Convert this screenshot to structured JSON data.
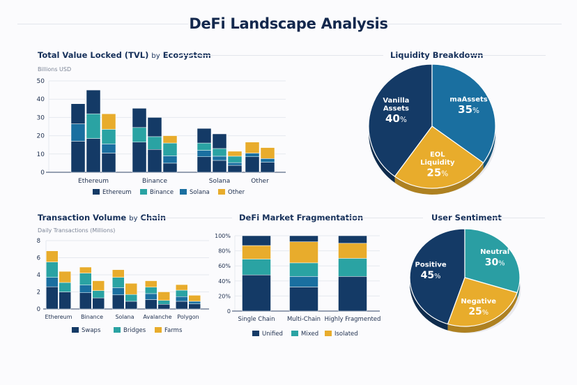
{
  "title": "DeFi Landscape Analysis",
  "colors": {
    "navy": "#143a66",
    "blue": "#1a6fa0",
    "teal": "#2aa3a3",
    "yellow": "#e8ac2c",
    "grid": "#e6e9ef",
    "axis": "#5a6a86",
    "text": "#1e2f4e"
  },
  "sections": {
    "tvl": {
      "title_a": "Total Value Locked (TVL)",
      "title_by": "by",
      "title_b": "Ecosystem"
    },
    "liquidity": {
      "title": "Liquidity Breakdown"
    },
    "txvol": {
      "title_a": "Transaction Volume",
      "title_by": "by",
      "title_b": "Chain"
    },
    "frag": {
      "title": "DeFi Market Fragmentation"
    },
    "sentiment": {
      "title": "User Sentiment"
    }
  },
  "chart_data": [
    {
      "id": "tvl",
      "type": "bar",
      "stacked": true,
      "title": "Total Value Locked (TVL) by Ecosystem",
      "ylabel": "Billions USD",
      "ylim": [
        0,
        50
      ],
      "yticks": [
        0,
        10,
        20,
        30,
        40,
        50
      ],
      "grid": true,
      "legend": {
        "position": "bottom",
        "entries": [
          {
            "label": "Ethereum",
            "color": "#143a66"
          },
          {
            "label": "Binance",
            "color": "#2aa3a3"
          },
          {
            "label": "Solana",
            "color": "#1a6fa0"
          },
          {
            "label": "Other",
            "color": "#e8ac2c"
          }
        ]
      },
      "groups": [
        {
          "category": "Ethereum",
          "bars": [
            [
              {
                "c": "navy",
                "v": 17
              },
              {
                "c": "blue",
                "v": 9.5
              },
              {
                "c": "navy",
                "v": 11
              }
            ],
            [
              {
                "c": "navy",
                "v": 18.5
              },
              {
                "c": "teal",
                "v": 13.5
              },
              {
                "c": "navy",
                "v": 13
              }
            ],
            [
              {
                "c": "navy",
                "v": 10.5
              },
              {
                "c": "blue",
                "v": 5
              },
              {
                "c": "teal",
                "v": 8
              },
              {
                "c": "yellow",
                "v": 8.5
              }
            ]
          ]
        },
        {
          "category": "Binance",
          "bars": [
            [
              {
                "c": "navy",
                "v": 16.5
              },
              {
                "c": "teal",
                "v": 8
              },
              {
                "c": "navy",
                "v": 10.5
              }
            ],
            [
              {
                "c": "navy",
                "v": 12.5
              },
              {
                "c": "teal",
                "v": 7
              },
              {
                "c": "navy",
                "v": 10.5
              }
            ],
            [
              {
                "c": "navy",
                "v": 5
              },
              {
                "c": "blue",
                "v": 4
              },
              {
                "c": "teal",
                "v": 7
              },
              {
                "c": "yellow",
                "v": 4
              }
            ]
          ]
        },
        {
          "category": "Solana",
          "bars": [
            [
              {
                "c": "navy",
                "v": 8.5
              },
              {
                "c": "blue",
                "v": 3.5
              },
              {
                "c": "teal",
                "v": 4
              },
              {
                "c": "navy",
                "v": 8
              }
            ],
            [
              {
                "c": "navy",
                "v": 6.5
              },
              {
                "c": "blue",
                "v": 2.3
              },
              {
                "c": "teal",
                "v": 4.2
              },
              {
                "c": "navy",
                "v": 8
              }
            ],
            [
              {
                "c": "navy",
                "v": 3.8
              },
              {
                "c": "blue",
                "v": 1.5
              },
              {
                "c": "teal",
                "v": 3.5
              },
              {
                "c": "yellow",
                "v": 2.7
              }
            ]
          ]
        },
        {
          "category": "Other",
          "bars": [
            [
              {
                "c": "navy",
                "v": 8.5
              },
              {
                "c": "blue",
                "v": 2
              },
              {
                "c": "yellow",
                "v": 6
              }
            ],
            [
              {
                "c": "navy",
                "v": 5.5
              },
              {
                "c": "blue",
                "v": 2
              },
              {
                "c": "yellow",
                "v": 6
              }
            ]
          ]
        }
      ]
    },
    {
      "id": "liquidity",
      "type": "pie",
      "title": "Liquidity Breakdown",
      "slices": [
        {
          "label": "Vanilla Assets",
          "value": 40,
          "display": "40",
          "color": "#143a66"
        },
        {
          "label": "maAssets",
          "value": 35,
          "display": "35",
          "color": "#1a6fa0"
        },
        {
          "label": "EOL Liquidity",
          "value": 25,
          "display": "25",
          "color": "#e8ac2c"
        }
      ]
    },
    {
      "id": "txvol",
      "type": "bar",
      "stacked": true,
      "title": "Transaction Volume by Chain",
      "ylabel": "Daily Transactions (Millions)",
      "ylim": [
        0,
        8
      ],
      "yticks": [
        0,
        2,
        4,
        6,
        8
      ],
      "grid": true,
      "legend": {
        "position": "bottom",
        "entries": [
          {
            "label": "Swaps",
            "color": "#143a66"
          },
          {
            "label": "Bridges",
            "color": "#2aa3a3"
          },
          {
            "label": "Farms",
            "color": "#e8ac2c"
          }
        ]
      },
      "groups": [
        {
          "category": "Ethereum",
          "bars": [
            [
              {
                "c": "navy",
                "v": 2.6
              },
              {
                "c": "blue",
                "v": 1.1
              },
              {
                "c": "teal",
                "v": 1.8
              },
              {
                "c": "yellow",
                "v": 1.3
              }
            ],
            [
              {
                "c": "navy",
                "v": 2.0
              },
              {
                "c": "teal",
                "v": 1.1
              },
              {
                "c": "yellow",
                "v": 1.3
              }
            ]
          ]
        },
        {
          "category": "Binance",
          "bars": [
            [
              {
                "c": "navy",
                "v": 1.9
              },
              {
                "c": "blue",
                "v": 0.9
              },
              {
                "c": "teal",
                "v": 1.4
              },
              {
                "c": "yellow",
                "v": 0.7
              }
            ],
            [
              {
                "c": "navy",
                "v": 1.3
              },
              {
                "c": "teal",
                "v": 0.85
              },
              {
                "c": "yellow",
                "v": 1.15
              }
            ]
          ]
        },
        {
          "category": "Solana",
          "bars": [
            [
              {
                "c": "navy",
                "v": 1.65
              },
              {
                "c": "blue",
                "v": 0.85
              },
              {
                "c": "teal",
                "v": 1.2
              },
              {
                "c": "yellow",
                "v": 0.9
              }
            ],
            [
              {
                "c": "navy",
                "v": 0.9
              },
              {
                "c": "teal",
                "v": 0.8
              },
              {
                "c": "yellow",
                "v": 1.3
              }
            ]
          ]
        },
        {
          "category": "Avalanche",
          "bars": [
            [
              {
                "c": "navy",
                "v": 1.1
              },
              {
                "c": "blue",
                "v": 0.7
              },
              {
                "c": "teal",
                "v": 0.75
              },
              {
                "c": "yellow",
                "v": 0.75
              }
            ],
            [
              {
                "c": "navy",
                "v": 0.55
              },
              {
                "c": "teal",
                "v": 0.45
              },
              {
                "c": "yellow",
                "v": 1.0
              }
            ]
          ]
        },
        {
          "category": "Polygon",
          "bars": [
            [
              {
                "c": "navy",
                "v": 0.9
              },
              {
                "c": "blue",
                "v": 0.55
              },
              {
                "c": "teal",
                "v": 0.75
              },
              {
                "c": "yellow",
                "v": 0.65
              }
            ],
            [
              {
                "c": "navy",
                "v": 0.6
              },
              {
                "c": "blue",
                "v": 0.3
              },
              {
                "c": "yellow",
                "v": 0.7
              }
            ]
          ]
        }
      ]
    },
    {
      "id": "frag",
      "type": "bar",
      "stacked": true,
      "percent": true,
      "title": "DeFi Market Fragmentation",
      "ylim": [
        0,
        100
      ],
      "yticks": [
        0,
        20,
        40,
        60,
        80,
        100
      ],
      "ytick_labels": [
        "0",
        "20%",
        "40%",
        "60%",
        "80%",
        "100%"
      ],
      "grid": true,
      "legend": {
        "position": "bottom",
        "entries": [
          {
            "label": "Unified",
            "color": "#143a66"
          },
          {
            "label": "Mixed",
            "color": "#2aa3a3"
          },
          {
            "label": "Isolated",
            "color": "#e8ac2c"
          }
        ]
      },
      "groups": [
        {
          "category": "Single Chain",
          "bars": [
            [
              {
                "c": "navy",
                "v": 48
              },
              {
                "c": "teal",
                "v": 21
              },
              {
                "c": "yellow",
                "v": 18
              },
              {
                "c": "navy",
                "v": 13
              }
            ]
          ]
        },
        {
          "category": "Multi-Chain",
          "bars": [
            [
              {
                "c": "navy",
                "v": 32
              },
              {
                "c": "blue",
                "v": 14
              },
              {
                "c": "teal",
                "v": 18
              },
              {
                "c": "yellow",
                "v": 28
              },
              {
                "c": "navy",
                "v": 8
              }
            ]
          ]
        },
        {
          "category": "Highly Fragmented",
          "bars": [
            [
              {
                "c": "navy",
                "v": 46
              },
              {
                "c": "teal",
                "v": 24
              },
              {
                "c": "yellow",
                "v": 20
              },
              {
                "c": "navy",
                "v": 10
              }
            ]
          ]
        }
      ]
    },
    {
      "id": "sentiment",
      "type": "pie",
      "title": "User Sentiment",
      "slices": [
        {
          "label": "Positive",
          "value": 45,
          "display": "45",
          "color": "#143a66"
        },
        {
          "label": "Neutral",
          "value": 30,
          "display": "30",
          "color": "#2a9ea3"
        },
        {
          "label": "Negative",
          "value": 25,
          "display": "25",
          "color": "#e8ac2c"
        }
      ]
    }
  ]
}
